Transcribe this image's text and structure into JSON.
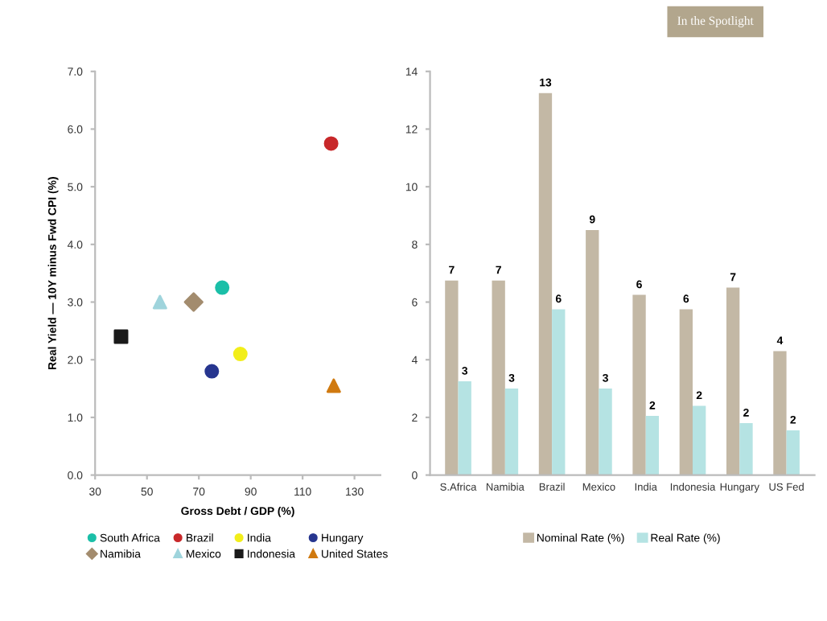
{
  "chart_data": [
    {
      "type": "scatter",
      "xlabel": "Gross Debt / GDP (%)",
      "ylabel": "Real Yield — 10Y minus Fwd CPI (%)",
      "annotations": [
        "In the Spotlight"
      ],
      "xlim": [
        30,
        140
      ],
      "xticks": [
        30,
        50,
        70,
        90,
        110,
        130
      ],
      "ylim": [
        0,
        7
      ],
      "yticks": [
        {
          "value": 0,
          "label": "0.0"
        },
        {
          "value": 1,
          "label": "1.0"
        },
        {
          "value": 2,
          "label": "2.0"
        },
        {
          "value": 3,
          "label": "3.0"
        },
        {
          "value": 4,
          "label": "4.0"
        },
        {
          "value": 5,
          "label": "5.0"
        },
        {
          "value": 6,
          "label": "6.0"
        },
        {
          "value": 7,
          "label": "7.0"
        }
      ],
      "grid": false,
      "legend": "bottom",
      "series": [
        {
          "name": "South Africa",
          "color": "#1bbfa8",
          "marker": "circle",
          "x": [
            79
          ],
          "values": [
            3.25
          ]
        },
        {
          "name": "Namibia",
          "color": "#a38c6e",
          "marker": "diamond",
          "x": [
            68
          ],
          "values": [
            3.0
          ]
        },
        {
          "name": "Brazil",
          "color": "#c8282a",
          "marker": "circle",
          "x": [
            121
          ],
          "values": [
            5.75
          ]
        },
        {
          "name": "Mexico",
          "color": "#9fd4dc",
          "marker": "triangle",
          "x": [
            55
          ],
          "values": [
            3.0
          ]
        },
        {
          "name": "India",
          "color": "#f2ee1a",
          "marker": "circle",
          "x": [
            86
          ],
          "values": [
            2.1
          ]
        },
        {
          "name": "Indonesia",
          "color": "#1a1a1a",
          "marker": "square",
          "x": [
            40
          ],
          "values": [
            2.4
          ]
        },
        {
          "name": "Hungary",
          "color": "#27368f",
          "marker": "circle",
          "x": [
            75
          ],
          "values": [
            1.8
          ]
        },
        {
          "name": "United States",
          "color": "#d07a10",
          "marker": "triangle",
          "x": [
            122
          ],
          "values": [
            1.55
          ]
        }
      ]
    },
    {
      "type": "bar",
      "categories": [
        "S.Africa",
        "Namibia",
        "Brazil",
        "Mexico",
        "India",
        "Indonesia",
        "Hungary",
        "US Fed"
      ],
      "ylim": [
        0,
        14
      ],
      "yticks": [
        0,
        2,
        4,
        6,
        8,
        10,
        12,
        14
      ],
      "grid": false,
      "legend": "bottom",
      "series": [
        {
          "name": "Nominal Rate (%)",
          "color": "#c3b8a5",
          "values": [
            6.75,
            6.75,
            13.25,
            8.5,
            6.25,
            5.75,
            6.5,
            4.3
          ],
          "value_labels": [
            "7",
            "7",
            "13",
            "9",
            "6",
            "6",
            "7",
            "4"
          ]
        },
        {
          "name": "Real Rate (%)",
          "color": "#b5e3e3",
          "values": [
            3.25,
            3.0,
            5.75,
            3.0,
            2.05,
            2.4,
            1.8,
            1.55
          ],
          "value_labels": [
            "3",
            "3",
            "6",
            "3",
            "2",
            "2",
            "2",
            "2"
          ]
        }
      ]
    }
  ]
}
